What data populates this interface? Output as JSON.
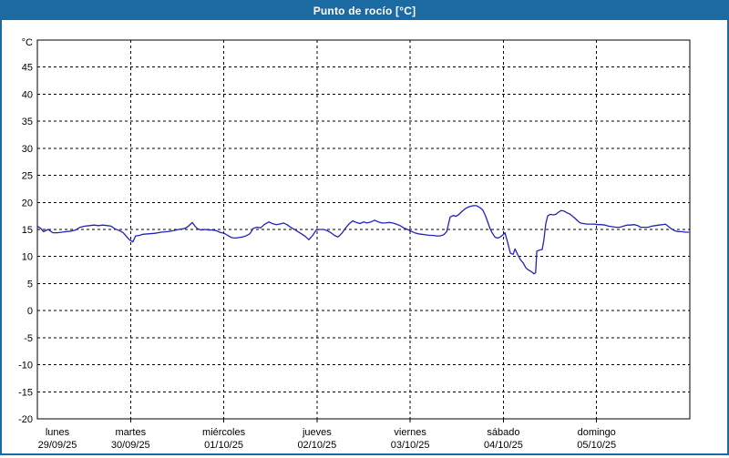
{
  "window": {
    "title": "Punto de rocío [°C]"
  },
  "colors": {
    "titlebar_bg": "#1b6aa2",
    "window_border": "#1b6aa2",
    "line": "#2222bb",
    "grid": "#000000",
    "axis": "#000000",
    "text": "#000000",
    "plot_bg": "#ffffff"
  },
  "chart_data": {
    "type": "line",
    "title": "Punto de rocío [°C]",
    "ylabel": "°C",
    "ylim": [
      -20,
      50
    ],
    "ytick_step": 5,
    "ytick_labels": [
      "45",
      "40",
      "35",
      "30",
      "25",
      "20",
      "15",
      "10",
      "5",
      "0",
      "-5",
      "-10",
      "-15",
      "-20"
    ],
    "grid": "dashed",
    "legend_position": "none",
    "x_unit": "hours_from_start",
    "xlim": [
      0,
      168
    ],
    "days": [
      {
        "name": "lunes",
        "date": "29/09/25"
      },
      {
        "name": "martes",
        "date": "30/09/25"
      },
      {
        "name": "miércoles",
        "date": "01/10/25"
      },
      {
        "name": "jueves",
        "date": "02/10/25"
      },
      {
        "name": "viernes",
        "date": "03/10/25"
      },
      {
        "name": "sábado",
        "date": "04/10/25"
      },
      {
        "name": "domingo",
        "date": "05/10/25"
      }
    ],
    "series": [
      {
        "name": "Punto de rocío",
        "color": "#2222bb",
        "points": [
          [
            0,
            15.6
          ],
          [
            0.9,
            15.2
          ],
          [
            1.6,
            14.6
          ],
          [
            2.8,
            15.0
          ],
          [
            4,
            14.4
          ],
          [
            5.2,
            14.4
          ],
          [
            6.3,
            14.5
          ],
          [
            7.5,
            14.6
          ],
          [
            8.7,
            14.7
          ],
          [
            9.9,
            14.9
          ],
          [
            11,
            15.4
          ],
          [
            12.2,
            15.6
          ],
          [
            13.4,
            15.7
          ],
          [
            14.5,
            15.8
          ],
          [
            15.7,
            15.7
          ],
          [
            16.9,
            15.8
          ],
          [
            18.1,
            15.7
          ],
          [
            19,
            15.6
          ],
          [
            20,
            15.1
          ],
          [
            21.1,
            14.8
          ],
          [
            22.1,
            14.4
          ],
          [
            22.8,
            13.8
          ],
          [
            23.7,
            13.1
          ],
          [
            24.6,
            12.7
          ],
          [
            25.3,
            13.8
          ],
          [
            26.3,
            13.9
          ],
          [
            27.2,
            14.1
          ],
          [
            28.6,
            14.2
          ],
          [
            30.3,
            14.3
          ],
          [
            31.9,
            14.5
          ],
          [
            33.6,
            14.6
          ],
          [
            35,
            14.8
          ],
          [
            36.4,
            15
          ],
          [
            38,
            15.2
          ],
          [
            38.9,
            15.6
          ],
          [
            39.9,
            16.3
          ],
          [
            40.6,
            15.6
          ],
          [
            41.3,
            15.1
          ],
          [
            42.2,
            14.9
          ],
          [
            43.2,
            15
          ],
          [
            44.1,
            14.9
          ],
          [
            45.1,
            14.9
          ],
          [
            46,
            14.8
          ],
          [
            46.9,
            14.5
          ],
          [
            48.1,
            14.3
          ],
          [
            49,
            13.9
          ],
          [
            50,
            13.5
          ],
          [
            50.9,
            13.4
          ],
          [
            51.9,
            13.5
          ],
          [
            52.8,
            13.6
          ],
          [
            53.7,
            13.8
          ],
          [
            54.7,
            14.2
          ],
          [
            55.6,
            15.2
          ],
          [
            56.5,
            15.4
          ],
          [
            57.5,
            15.3
          ],
          [
            58.4,
            15.9
          ],
          [
            59.6,
            16.4
          ],
          [
            60.5,
            16.1
          ],
          [
            61.5,
            15.9
          ],
          [
            62.4,
            16
          ],
          [
            63.4,
            16.2
          ],
          [
            64.3,
            15.9
          ],
          [
            65.2,
            15.4
          ],
          [
            66.2,
            15
          ],
          [
            67.1,
            14.6
          ],
          [
            68,
            14.2
          ],
          [
            69,
            13.7
          ],
          [
            69.9,
            13.1
          ],
          [
            70.9,
            13.9
          ],
          [
            71.8,
            14.9
          ],
          [
            72.7,
            15
          ],
          [
            73.7,
            15
          ],
          [
            74.6,
            14.8
          ],
          [
            75.6,
            14.4
          ],
          [
            76.5,
            13.9
          ],
          [
            77.4,
            13.6
          ],
          [
            78.4,
            14.3
          ],
          [
            79.3,
            15.2
          ],
          [
            80.2,
            16
          ],
          [
            81.2,
            16.6
          ],
          [
            82.1,
            16.3
          ],
          [
            83.1,
            16.1
          ],
          [
            84,
            16.4
          ],
          [
            84.9,
            16.2
          ],
          [
            85.9,
            16.4
          ],
          [
            86.8,
            16.7
          ],
          [
            87.8,
            16.4
          ],
          [
            88.7,
            16.2
          ],
          [
            89.6,
            16.2
          ],
          [
            90.6,
            16.3
          ],
          [
            91.5,
            16.2
          ],
          [
            92.4,
            16
          ],
          [
            93.4,
            15.7
          ],
          [
            94.3,
            15.3
          ],
          [
            95.3,
            15
          ],
          [
            96.2,
            14.7
          ],
          [
            97.1,
            14.4
          ],
          [
            98.1,
            14.2
          ],
          [
            99,
            14.1
          ],
          [
            100,
            14
          ],
          [
            100.9,
            13.9
          ],
          [
            101.8,
            13.9
          ],
          [
            102.8,
            13.8
          ],
          [
            103.7,
            13.8
          ],
          [
            104.6,
            14
          ],
          [
            105.4,
            14.6
          ],
          [
            105.8,
            15.8
          ],
          [
            106.3,
            17.3
          ],
          [
            107.2,
            17.6
          ],
          [
            107.7,
            17.4
          ],
          [
            108.4,
            17.7
          ],
          [
            109.3,
            18.3
          ],
          [
            110.3,
            18.9
          ],
          [
            111.2,
            19.2
          ],
          [
            112.2,
            19.4
          ],
          [
            113.1,
            19.4
          ],
          [
            114,
            19
          ],
          [
            114.7,
            18.6
          ],
          [
            115.4,
            17.5
          ],
          [
            115.9,
            16.5
          ],
          [
            116.6,
            15.1
          ],
          [
            117.1,
            14.4
          ],
          [
            117.8,
            13.6
          ],
          [
            118.5,
            13.4
          ],
          [
            119.2,
            13.6
          ],
          [
            119.9,
            14
          ],
          [
            120.4,
            14.4
          ],
          [
            121.1,
            12.6
          ],
          [
            121.8,
            10.6
          ],
          [
            122.5,
            10.4
          ],
          [
            123,
            11.4
          ],
          [
            123.7,
            10.3
          ],
          [
            124.4,
            9.4
          ],
          [
            125.1,
            8.8
          ],
          [
            125.8,
            7.9
          ],
          [
            126.5,
            7.5
          ],
          [
            127.2,
            7.2
          ],
          [
            127.9,
            6.8
          ],
          [
            128.3,
            7
          ],
          [
            128.6,
            11
          ],
          [
            129.3,
            11.2
          ],
          [
            130,
            11.3
          ],
          [
            130.4,
            13
          ],
          [
            130.9,
            16
          ],
          [
            131.4,
            17.5
          ],
          [
            132.1,
            17.8
          ],
          [
            132.8,
            17.7
          ],
          [
            133.5,
            17.8
          ],
          [
            134.2,
            18.2
          ],
          [
            134.9,
            18.5
          ],
          [
            135.6,
            18.4
          ],
          [
            136.3,
            18.1
          ],
          [
            137,
            17.9
          ],
          [
            137.7,
            17.5
          ],
          [
            138.4,
            17.1
          ],
          [
            139.1,
            16.6
          ],
          [
            139.8,
            16.2
          ],
          [
            140.6,
            16.1
          ],
          [
            141.5,
            16
          ],
          [
            142.4,
            16
          ],
          [
            143.4,
            16
          ],
          [
            144.3,
            15.9
          ],
          [
            145.2,
            15.9
          ],
          [
            146.2,
            15.8
          ],
          [
            147.1,
            15.6
          ],
          [
            148.1,
            15.5
          ],
          [
            149,
            15.4
          ],
          [
            149.9,
            15.4
          ],
          [
            150.9,
            15.6
          ],
          [
            151.8,
            15.8
          ],
          [
            152.7,
            15.8
          ],
          [
            153.7,
            15.9
          ],
          [
            154.6,
            15.7
          ],
          [
            155.3,
            15.4
          ],
          [
            156.3,
            15.4
          ],
          [
            157.2,
            15.4
          ],
          [
            158.2,
            15.6
          ],
          [
            159.1,
            15.7
          ],
          [
            160,
            15.8
          ],
          [
            161,
            15.9
          ],
          [
            161.7,
            16
          ],
          [
            162.4,
            15.6
          ],
          [
            163.1,
            15.2
          ],
          [
            164,
            14.8
          ],
          [
            165,
            14.6
          ],
          [
            165.9,
            14.6
          ],
          [
            166.8,
            14.5
          ],
          [
            167.7,
            14.5
          ]
        ]
      }
    ]
  }
}
